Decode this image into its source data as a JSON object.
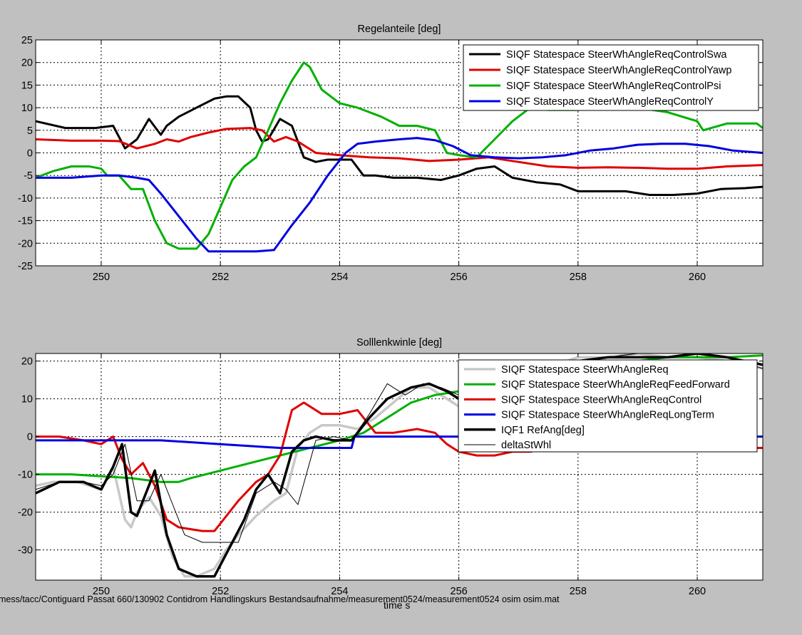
{
  "charts": [
    {
      "type": "line",
      "title": "Regelanteile [deg]",
      "xlim": [
        248.9,
        261.1
      ],
      "ylim": [
        -25,
        25
      ],
      "xticks": [
        250,
        252,
        254,
        256,
        258,
        260
      ],
      "yticks": [
        -25,
        -20,
        -15,
        -10,
        -5,
        0,
        5,
        10,
        15,
        20,
        25
      ],
      "grid": true,
      "legend_position": "top-right",
      "series": [
        {
          "name": "SIQF Statespace SteerWhAngleReqControlSwa",
          "color": "#000000",
          "width": 3,
          "x": [
            248.9,
            249.4,
            249.9,
            250.2,
            250.4,
            250.6,
            250.8,
            251.0,
            251.1,
            251.3,
            251.6,
            251.9,
            252.1,
            252.3,
            252.5,
            252.6,
            252.7,
            252.8,
            253.0,
            253.2,
            253.4,
            253.6,
            253.8,
            254.0,
            254.2,
            254.4,
            254.6,
            254.9,
            255.3,
            255.7,
            256.0,
            256.3,
            256.6,
            256.9,
            257.3,
            257.7,
            258.0,
            258.4,
            258.8,
            259.2,
            259.6,
            260.0,
            260.4,
            260.8,
            261.1
          ],
          "y": [
            7,
            5.5,
            5.5,
            6,
            1,
            3,
            7.5,
            4,
            6,
            8,
            10,
            12,
            12.5,
            12.5,
            10,
            5,
            2.5,
            3,
            7.5,
            6,
            -1,
            -2,
            -1.5,
            -1.5,
            -1.5,
            -5,
            -5,
            -5.5,
            -5.5,
            -6,
            -5,
            -3.5,
            -3,
            -5.5,
            -6.5,
            -7,
            -8.5,
            -8.5,
            -8.5,
            -9.3,
            -9.3,
            -9,
            -8,
            -7.8,
            -7.5
          ]
        },
        {
          "name": "SIQF Statespace SteerWhAngleReqControlYawp",
          "color": "#e00000",
          "width": 3,
          "x": [
            248.9,
            249.5,
            250.0,
            250.3,
            250.6,
            250.9,
            251.1,
            251.3,
            251.5,
            251.8,
            252.1,
            252.5,
            252.7,
            252.9,
            253.1,
            253.3,
            253.6,
            254.0,
            254.5,
            255.0,
            255.5,
            256.0,
            256.5,
            257.0,
            257.5,
            258.0,
            258.5,
            259.0,
            259.5,
            260.0,
            260.5,
            261.1
          ],
          "y": [
            3,
            2.7,
            2.7,
            2.6,
            1,
            2,
            3,
            2.5,
            3.5,
            4.5,
            5.3,
            5.5,
            5,
            2.5,
            3.5,
            2.5,
            0,
            -0.5,
            -1,
            -1.2,
            -1.8,
            -1.5,
            -1,
            -2,
            -3,
            -3.3,
            -3.2,
            -3.3,
            -3.5,
            -3.5,
            -3,
            -2.7
          ]
        },
        {
          "name": "SIQF Statespace SteerWhAngleReqControlPsi",
          "color": "#00b000",
          "width": 3,
          "x": [
            248.9,
            249.2,
            249.5,
            249.8,
            250.0,
            250.1,
            250.3,
            250.5,
            250.6,
            250.7,
            250.9,
            251.1,
            251.3,
            251.6,
            251.8,
            252.0,
            252.2,
            252.4,
            252.6,
            252.8,
            253.0,
            253.2,
            253.4,
            253.5,
            253.7,
            254.0,
            254.3,
            254.7,
            255.0,
            255.3,
            255.6,
            255.8,
            256.0,
            256.3,
            256.6,
            256.9,
            257.2,
            257.5,
            258.0,
            258.5,
            259.0,
            259.5,
            260.0,
            260.1,
            260.5,
            261.0,
            261.1
          ],
          "y": [
            -5.5,
            -4,
            -3,
            -3,
            -3.5,
            -5,
            -5,
            -8,
            -8,
            -8,
            -15,
            -20,
            -21.2,
            -21.2,
            -18,
            -12,
            -6,
            -3,
            -1,
            5,
            11,
            16,
            20,
            19,
            14,
            11,
            10,
            8,
            6,
            6,
            5,
            0,
            -0.5,
            -1,
            3,
            7,
            10,
            9.5,
            9.5,
            10,
            10,
            9,
            7,
            5,
            6.5,
            6.5,
            5.5
          ]
        },
        {
          "name": "SIQF Statespace SteerWhAngleReqControlY",
          "color": "#0000e0",
          "width": 3,
          "x": [
            248.9,
            249.5,
            250.0,
            250.3,
            250.6,
            250.8,
            251.0,
            251.3,
            251.6,
            251.8,
            252.2,
            252.6,
            252.9,
            253.2,
            253.5,
            253.8,
            254.1,
            254.3,
            254.6,
            255.0,
            255.3,
            255.6,
            255.9,
            256.2,
            256.6,
            257.0,
            257.4,
            257.8,
            258.2,
            258.6,
            259.0,
            259.4,
            259.8,
            260.2,
            260.6,
            261.1
          ],
          "y": [
            -5.5,
            -5.5,
            -5,
            -5,
            -5.5,
            -6,
            -9,
            -14,
            -19,
            -21.8,
            -21.8,
            -21.8,
            -21.5,
            -16,
            -11,
            -5,
            0,
            2,
            2.5,
            3,
            3.3,
            2.8,
            1.5,
            -0.5,
            -1,
            -1.2,
            -1,
            -0.5,
            0.5,
            1,
            1.8,
            2,
            2,
            1.5,
            0.5,
            0
          ]
        }
      ]
    },
    {
      "type": "line",
      "title": "Solllenkwinle [deg]",
      "xlim": [
        248.9,
        261.1
      ],
      "ylim": [
        -38,
        22
      ],
      "xticks": [
        250,
        252,
        254,
        256,
        258,
        260
      ],
      "yticks": [
        -30,
        -20,
        -10,
        0,
        10,
        20
      ],
      "xlabel": "time s",
      "grid": true,
      "legend_position": "top-right",
      "series": [
        {
          "name": "SIQF Statespace SteerWhAngleReq",
          "color": "#c8c8c8",
          "width": 3.5,
          "x": [
            248.9,
            249.2,
            249.6,
            250.0,
            250.2,
            250.4,
            250.5,
            250.6,
            250.8,
            251.0,
            251.2,
            251.4,
            251.6,
            251.9,
            252.1,
            252.3,
            252.6,
            252.9,
            253.1,
            253.3,
            253.5,
            253.7,
            254.0,
            254.3,
            254.6,
            254.9,
            255.2,
            255.5,
            255.8,
            256.0,
            256.4,
            256.8,
            257.2,
            257.6,
            258.0,
            258.5,
            259.0,
            259.5,
            260.0,
            260.5,
            261.1
          ],
          "y": [
            -13,
            -12,
            -12,
            -14,
            -8,
            -22,
            -24,
            -20,
            -16,
            -21,
            -32,
            -37,
            -37,
            -35,
            -30,
            -26,
            -21,
            -17,
            -15,
            -3,
            1,
            3,
            3,
            2,
            5,
            9,
            13,
            13,
            10,
            8,
            10,
            14,
            18,
            19,
            21,
            21,
            22,
            21,
            21,
            20,
            18
          ]
        },
        {
          "name": "SIQF Statespace SteerWhAngleReqFeedForward",
          "color": "#00b000",
          "width": 3,
          "x": [
            248.9,
            249.5,
            250.0,
            250.5,
            251.0,
            251.3,
            251.5,
            252.0,
            252.5,
            253.0,
            253.5,
            254.0,
            254.4,
            254.8,
            255.2,
            255.6,
            256.0,
            256.5,
            257.0,
            257.5,
            258.0,
            258.5,
            259.0,
            259.5,
            260.0,
            260.5,
            261.1
          ],
          "y": [
            -10,
            -10,
            -10.5,
            -11,
            -12,
            -12,
            -11,
            -9,
            -7,
            -5,
            -3,
            -1,
            1,
            5,
            9,
            11,
            12,
            14,
            16,
            18,
            19,
            20,
            20,
            21,
            21,
            21,
            21.5
          ]
        },
        {
          "name": "SIQF Statespace SteerWhAngleReqControl",
          "color": "#e00000",
          "width": 3,
          "x": [
            248.9,
            249.3,
            249.7,
            250.0,
            250.2,
            250.35,
            250.5,
            250.7,
            250.9,
            251.1,
            251.3,
            251.5,
            251.7,
            251.9,
            252.0,
            252.3,
            252.6,
            252.8,
            253.0,
            253.2,
            253.4,
            253.7,
            254.0,
            254.3,
            254.6,
            254.9,
            255.3,
            255.6,
            255.8,
            256.0,
            256.3,
            256.6,
            256.9,
            257.2,
            257.5,
            258.0,
            258.5,
            259.0,
            259.5,
            260.0,
            260.5,
            261.1
          ],
          "y": [
            0,
            0,
            -1,
            -2,
            0,
            -6,
            -10,
            -7,
            -13,
            -22,
            -24,
            -24.5,
            -25,
            -25,
            -23,
            -17,
            -12,
            -10,
            -5,
            7,
            9,
            6,
            6,
            7,
            1,
            1,
            2,
            1,
            -2,
            -4,
            -5,
            -5,
            -4,
            -4,
            -3,
            -3,
            -3,
            -2.5,
            -2,
            -2,
            -3,
            -3
          ]
        },
        {
          "name": "SIQF Statespace SteerWhAngleReqLongTerm",
          "color": "#0000e0",
          "width": 3,
          "x": [
            248.9,
            249.5,
            250.0,
            250.5,
            251.0,
            251.5,
            252.0,
            252.5,
            253.0,
            253.5,
            254.0,
            254.2,
            254.25,
            254.5,
            255.0,
            256.0,
            257.0,
            258.0,
            259.0,
            260.0,
            261.1
          ],
          "y": [
            -1,
            -1,
            -1,
            -1,
            -1,
            -1.5,
            -2,
            -2.5,
            -3,
            -3,
            -3,
            -3,
            0,
            0,
            0,
            0,
            0,
            0,
            0,
            0,
            0
          ]
        },
        {
          "name": "IQF1 RefAng[deg]",
          "color": "#000000",
          "width": 3.5,
          "x": [
            248.9,
            249.3,
            249.7,
            250.0,
            250.2,
            250.35,
            250.5,
            250.6,
            250.8,
            250.9,
            251.1,
            251.3,
            251.6,
            251.9,
            252.1,
            252.4,
            252.6,
            252.8,
            253.0,
            253.2,
            253.4,
            253.6,
            253.9,
            254.2,
            254.5,
            254.8,
            255.2,
            255.5,
            255.8,
            256.0,
            256.3,
            256.6,
            257.0,
            257.5,
            258.0,
            258.5,
            259.0,
            259.5,
            260.0,
            260.5,
            261.1
          ],
          "y": [
            -15,
            -12,
            -12,
            -14,
            -8,
            -2,
            -20,
            -21,
            -13,
            -9,
            -26,
            -35,
            -37,
            -37,
            -31,
            -22,
            -14,
            -10,
            -15,
            -4,
            -1,
            0,
            -1,
            -1,
            5,
            10,
            13,
            14,
            12,
            10,
            11,
            14,
            17,
            19,
            20,
            21,
            21,
            21,
            22,
            21,
            19
          ]
        },
        {
          "name": "deltaStWhl",
          "color": "#000000",
          "width": 1,
          "x": [
            248.9,
            249.3,
            249.7,
            250.0,
            250.2,
            250.4,
            250.6,
            250.8,
            251.0,
            251.2,
            251.4,
            251.7,
            252.0,
            252.3,
            252.6,
            252.9,
            253.1,
            253.3,
            253.6,
            253.9,
            254.2,
            254.5,
            254.8,
            255.1,
            255.4,
            255.7,
            256.0,
            256.3,
            256.6,
            257.0,
            257.5,
            258.0,
            258.5,
            259.0,
            259.5,
            260.0,
            260.5,
            261.1
          ],
          "y": [
            -14,
            -12,
            -12,
            -13,
            -10,
            -2,
            -17,
            -17,
            -10,
            -18,
            -26,
            -28,
            -28,
            -28,
            -15,
            -12,
            -14,
            -18,
            -1,
            0,
            -1,
            6,
            14,
            11,
            14,
            13,
            11,
            10,
            14,
            17,
            19,
            20,
            21,
            22,
            22,
            22,
            21,
            18
          ]
        }
      ]
    }
  ],
  "footer": {
    "path": "mess/tacc/Contiguard Passat 660/130902 Contidrom Handlingskurs Bestandsaufnahme/measurement0524/measurement0524 osim osim.mat"
  }
}
